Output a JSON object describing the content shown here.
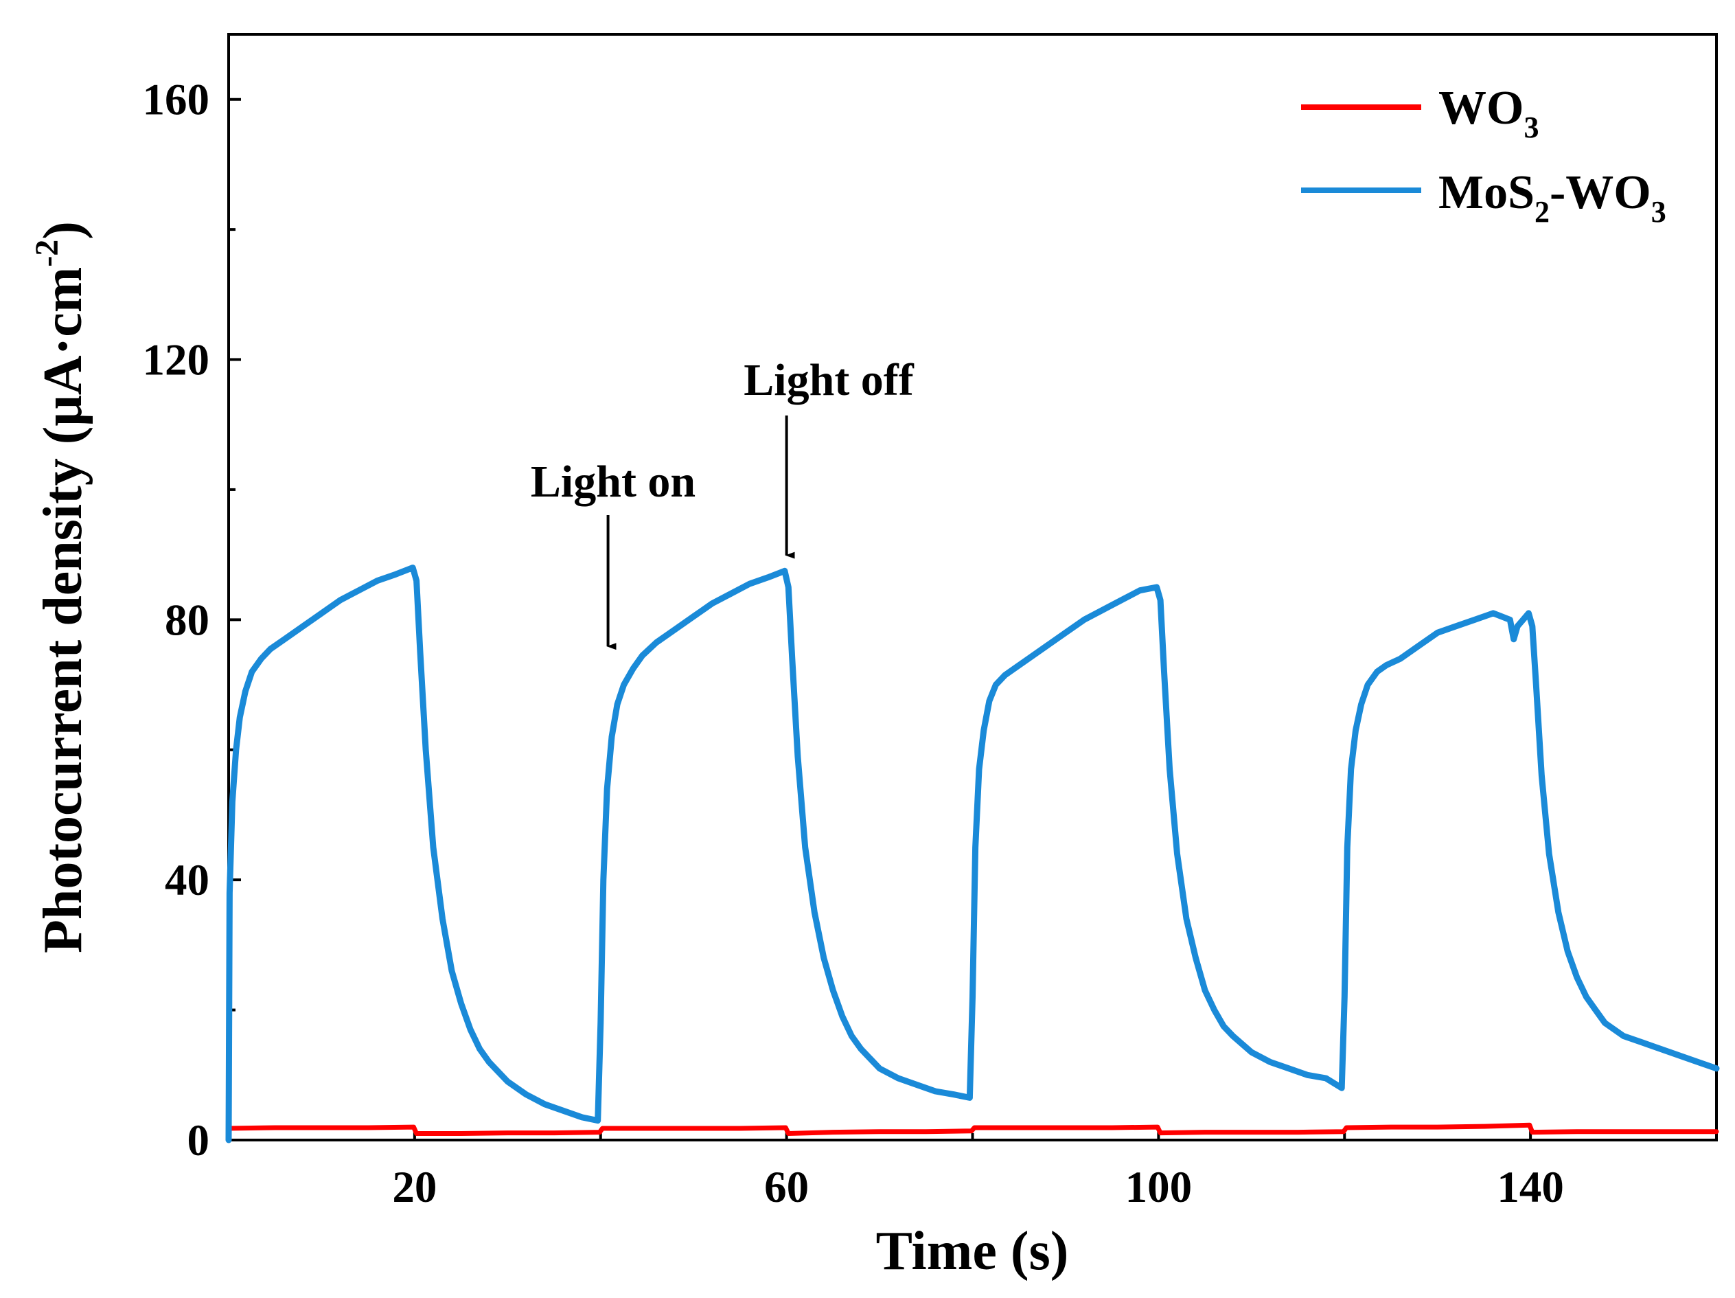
{
  "chart_data": {
    "type": "line",
    "title": "",
    "xlabel": "Time (s)",
    "ylabel": {
      "main": "Photocurrent density (μA·cm",
      "sup": "-2",
      "close": ")"
    },
    "xlim": [
      0,
      160
    ],
    "ylim": [
      0,
      170
    ],
    "x_ticks": [
      20,
      60,
      100,
      140
    ],
    "x_minor_ticks": [
      40,
      80,
      120
    ],
    "y_ticks": [
      0,
      40,
      80,
      120,
      160
    ],
    "y_minor_ticks": [
      20,
      60,
      100,
      140
    ],
    "grid": false,
    "legend_position": "top-right",
    "series": [
      {
        "name": "WO3",
        "label_main": "WO",
        "label_sub": "3",
        "color": "#ff0000",
        "x": [
          0,
          5,
          10,
          15,
          19.9,
          20.2,
          25,
          30,
          35,
          39.9,
          40.2,
          45,
          50,
          55,
          59.9,
          60.2,
          65,
          70,
          75,
          79.9,
          80.2,
          85,
          90,
          95,
          99.9,
          100.2,
          105,
          110,
          115,
          119.9,
          120.2,
          125,
          130,
          135,
          139.9,
          140.2,
          145,
          150,
          155,
          160
        ],
        "values": [
          1.8,
          1.9,
          1.9,
          1.9,
          2.0,
          1.0,
          1.0,
          1.1,
          1.1,
          1.2,
          1.8,
          1.8,
          1.8,
          1.8,
          1.9,
          1.0,
          1.2,
          1.3,
          1.3,
          1.4,
          1.9,
          1.9,
          1.9,
          1.9,
          2.0,
          1.1,
          1.2,
          1.2,
          1.2,
          1.3,
          1.9,
          2.0,
          2.0,
          2.1,
          2.3,
          1.2,
          1.3,
          1.3,
          1.3,
          1.3
        ]
      },
      {
        "name": "MoS2-WO3",
        "label_main": "MoS",
        "label_sub": "2",
        "label_mid": "-WO",
        "label_sub2": "3",
        "color": "#1a8ad8",
        "x": [
          0,
          0.1,
          0.4,
          0.8,
          1.2,
          1.8,
          2.5,
          3.5,
          4.5,
          6,
          8,
          10,
          12,
          14,
          16,
          18,
          19.8,
          20.2,
          20.6,
          21.2,
          22,
          23,
          24,
          25,
          26,
          27,
          28,
          30,
          32,
          34,
          36,
          38,
          39.7,
          40,
          40.3,
          40.7,
          41.2,
          41.8,
          42.5,
          43.5,
          44.5,
          46,
          48,
          50,
          52,
          54,
          56,
          58,
          59.8,
          60.2,
          60.6,
          61.2,
          62,
          63,
          64,
          65,
          66,
          67,
          68,
          70,
          72,
          74,
          76,
          78,
          79.7,
          80,
          80.3,
          80.7,
          81.2,
          81.8,
          82.5,
          83.5,
          84.5,
          86,
          88,
          90,
          92,
          94,
          96,
          98,
          99.8,
          100.2,
          100.6,
          101.2,
          102,
          103,
          104,
          105,
          106,
          107,
          108,
          110,
          112,
          114,
          116,
          118,
          119.7,
          120,
          120.3,
          120.7,
          121.2,
          121.8,
          122.5,
          123.5,
          124.5,
          126,
          128,
          130,
          132,
          134,
          136,
          137.8,
          138.2,
          138.6,
          139.2,
          139.8,
          140.2,
          140.6,
          141.2,
          142,
          143,
          144,
          145,
          146,
          147,
          148,
          150,
          152,
          154,
          156,
          158,
          160
        ],
        "values": [
          0,
          38,
          52,
          60,
          65,
          69,
          72,
          74,
          75.5,
          77,
          79,
          81,
          83,
          84.5,
          86,
          87,
          88,
          86,
          75,
          60,
          45,
          34,
          26,
          21,
          17,
          14,
          12,
          9,
          7,
          5.5,
          4.5,
          3.5,
          3,
          18,
          40,
          54,
          62,
          67,
          70,
          72.5,
          74.5,
          76.5,
          78.5,
          80.5,
          82.5,
          84,
          85.5,
          86.5,
          87.5,
          85,
          74,
          59,
          45,
          35,
          28,
          23,
          19,
          16,
          14,
          11,
          9.5,
          8.5,
          7.5,
          7,
          6.5,
          22,
          45,
          57,
          63,
          67.5,
          70,
          71.5,
          72.5,
          74,
          76,
          78,
          80,
          81.5,
          83,
          84.5,
          85,
          83,
          72,
          57,
          44,
          34,
          28,
          23,
          20,
          17.5,
          16,
          13.5,
          12,
          11,
          10,
          9.5,
          8,
          22,
          45,
          57,
          63,
          67,
          70,
          72,
          73,
          74,
          76,
          78,
          79,
          80,
          81,
          80,
          77,
          79,
          80,
          81,
          79,
          70,
          56,
          44,
          35,
          29,
          25,
          22,
          20,
          18,
          16,
          15,
          14,
          13,
          12,
          11
        ]
      }
    ],
    "annotations": [
      {
        "text": "Light on",
        "arrow_x": 40.8,
        "arrow_y": 74
      },
      {
        "text": "Light off",
        "arrow_x": 60,
        "arrow_y": 88
      }
    ]
  }
}
